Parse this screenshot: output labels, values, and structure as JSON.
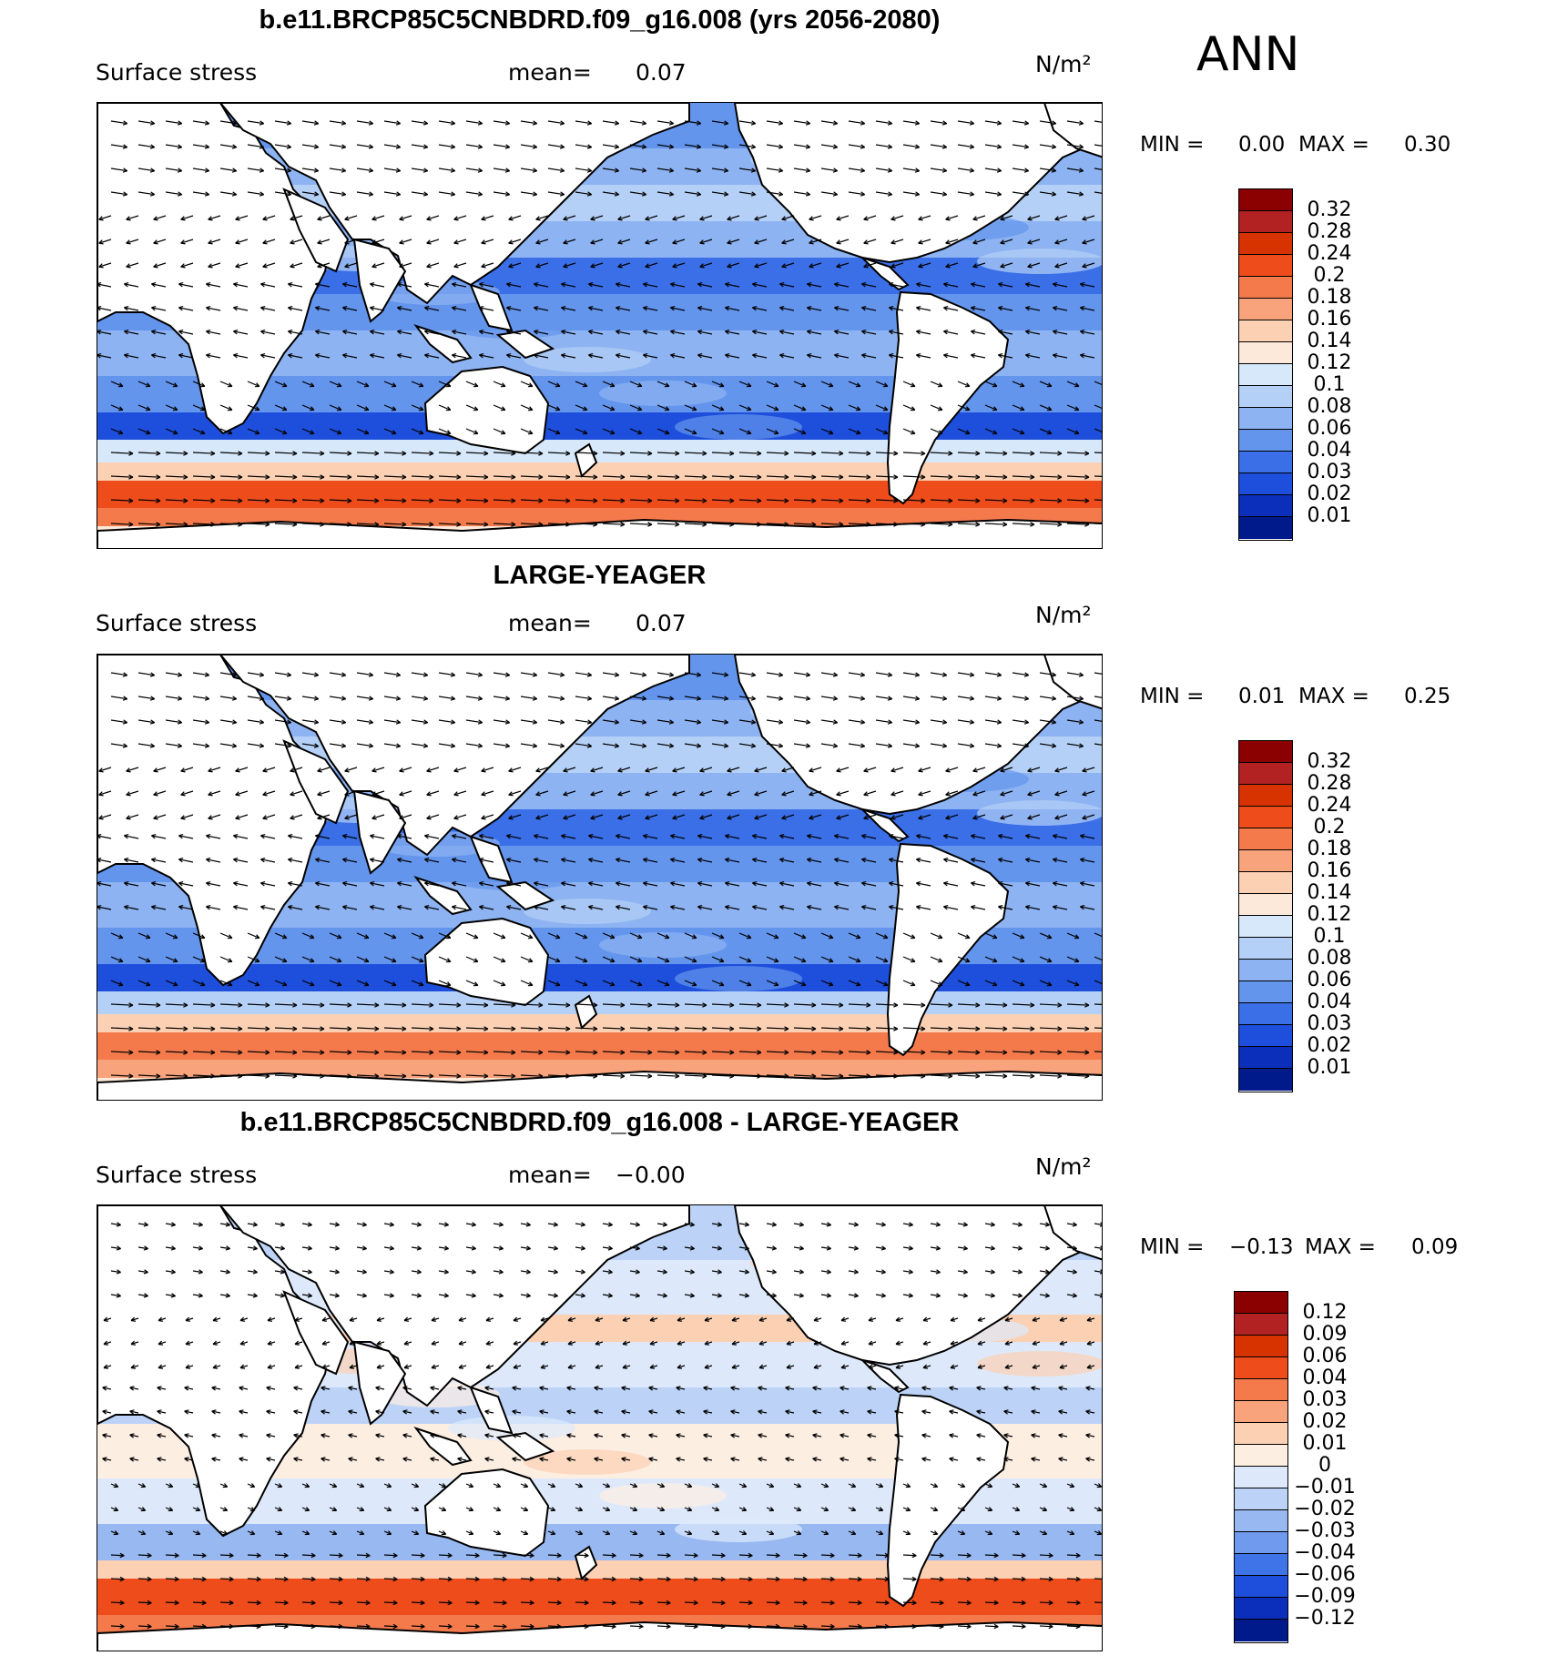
{
  "season": "ANN",
  "panels": [
    {
      "title": "b.e11.BRCP85C5CNBDRD.f09_g16.008 (yrs 2056-2080)",
      "variable": "Surface stress",
      "mean_label": "mean=",
      "mean_value": "0.07",
      "units": "N/m²",
      "min_label": "MIN =",
      "min_value": "0.00",
      "max_label": "MAX =",
      "max_value": "0.30",
      "levels": [
        "0.32",
        "0.28",
        "0.24",
        "0.2",
        "0.18",
        "0.16",
        "0.14",
        "0.12",
        "0.1",
        "0.08",
        "0.06",
        "0.04",
        "0.03",
        "0.02",
        "0.01"
      ],
      "colors": [
        "#8b0000",
        "#b22222",
        "#d73300",
        "#ee4c1a",
        "#f47a4c",
        "#f9a37d",
        "#fcd0b3",
        "#fde9d9",
        "#d6e8fa",
        "#b5d0f7",
        "#8db3f2",
        "#6495ed",
        "#3a6fe8",
        "#1e4fdc",
        "#0b2fbb",
        "#001a8c"
      ]
    },
    {
      "title": "LARGE-YEAGER",
      "variable": "Surface stress",
      "mean_label": "mean=",
      "mean_value": "0.07",
      "units": "N/m²",
      "min_label": "MIN =",
      "min_value": "0.01",
      "max_label": "MAX =",
      "max_value": "0.25",
      "levels": [
        "0.32",
        "0.28",
        "0.24",
        "0.2",
        "0.18",
        "0.16",
        "0.14",
        "0.12",
        "0.1",
        "0.08",
        "0.06",
        "0.04",
        "0.03",
        "0.02",
        "0.01"
      ],
      "colors": [
        "#8b0000",
        "#b22222",
        "#d73300",
        "#ee4c1a",
        "#f47a4c",
        "#f9a37d",
        "#fcd0b3",
        "#fde9d9",
        "#d6e8fa",
        "#b5d0f7",
        "#8db3f2",
        "#6495ed",
        "#3a6fe8",
        "#1e4fdc",
        "#0b2fbb",
        "#001a8c"
      ]
    },
    {
      "title": "b.e11.BRCP85C5CNBDRD.f09_g16.008 - LARGE-YEAGER",
      "variable": "Surface stress",
      "mean_label": "mean=",
      "mean_value": "−0.00",
      "units": "N/m²",
      "min_label": "MIN =",
      "min_value": "−0.13",
      "max_label": "MAX =",
      "max_value": "0.09",
      "levels": [
        "0.12",
        "0.09",
        "0.06",
        "0.04",
        "0.03",
        "0.02",
        "0.01",
        "0",
        "−0.01",
        "−0.02",
        "−0.03",
        "−0.04",
        "−0.06",
        "−0.09",
        "−0.12"
      ],
      "colors": [
        "#8b0000",
        "#b22222",
        "#d73300",
        "#ee4c1a",
        "#f47a4c",
        "#f9a37d",
        "#fcd0b3",
        "#fdeee2",
        "#dde9fb",
        "#bcd3f7",
        "#98b8f2",
        "#6f9aee",
        "#3f73e8",
        "#1e4fdc",
        "#0b2fbb",
        "#001a8c"
      ]
    }
  ]
}
